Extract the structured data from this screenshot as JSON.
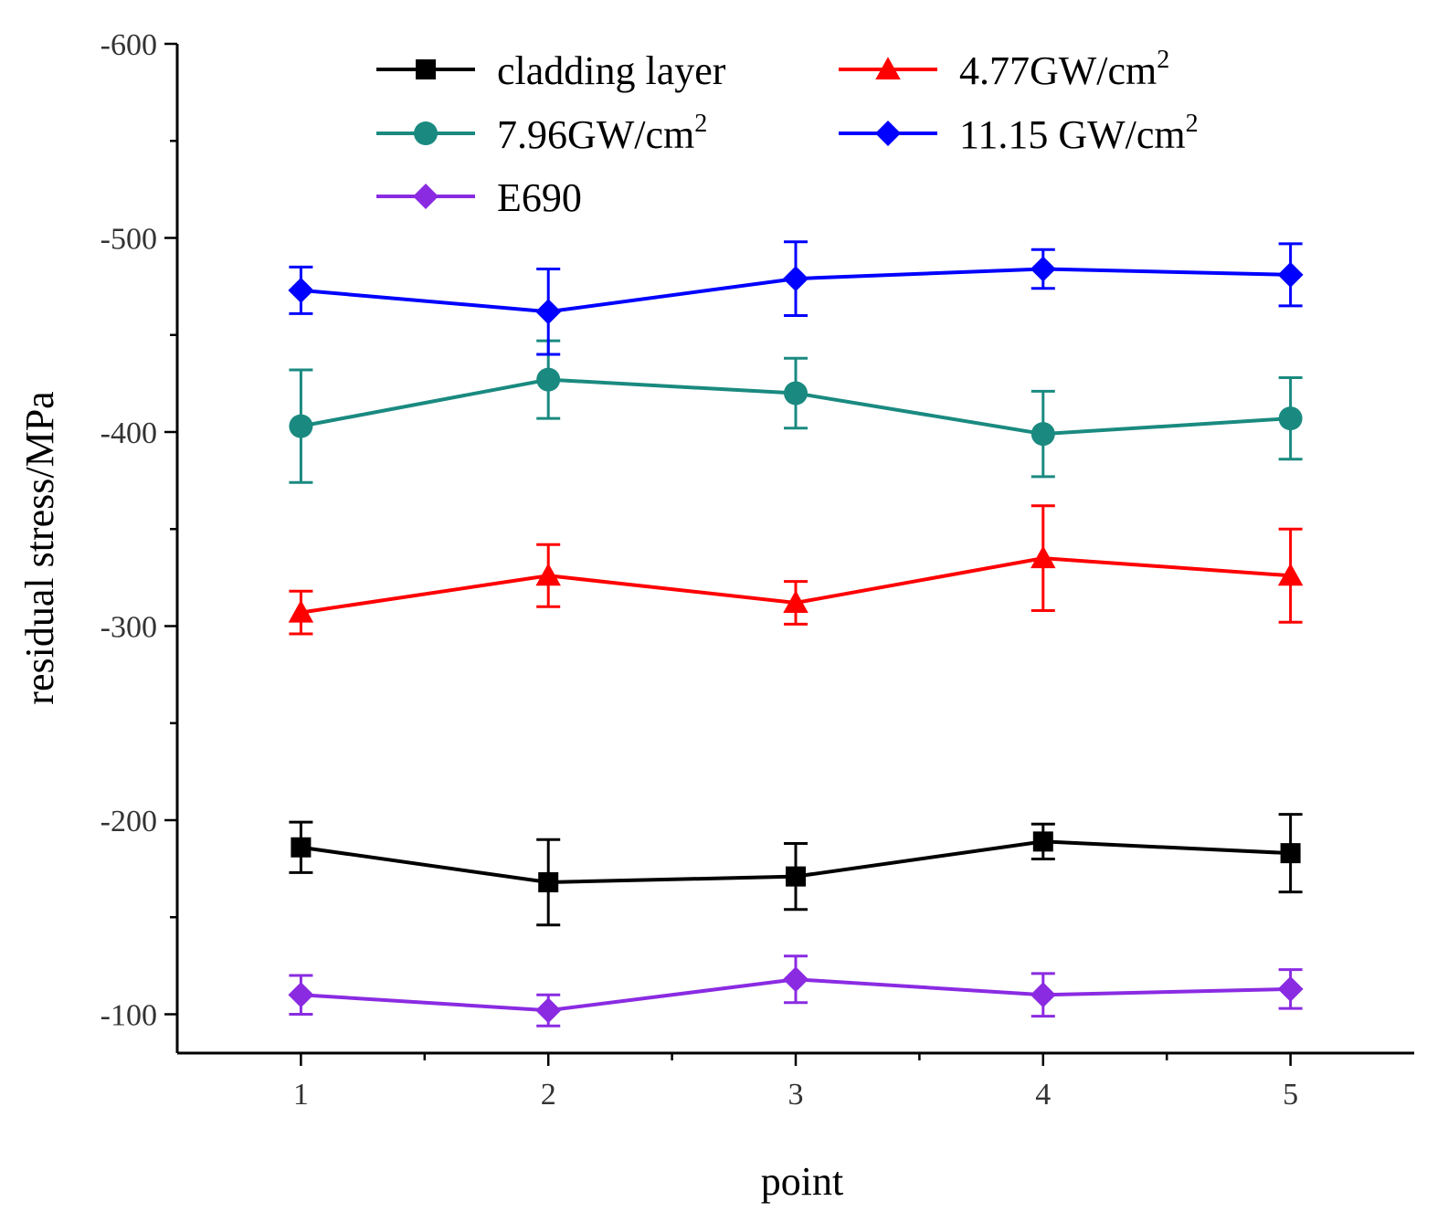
{
  "chart_data": {
    "type": "line",
    "xlabel": "point",
    "ylabel": "residual stress/MPa",
    "x": [
      1,
      2,
      3,
      4,
      5
    ],
    "x_tick_labels": [
      "1",
      "2",
      "3",
      "4",
      "5"
    ],
    "xlim": [
      0.5,
      5.5
    ],
    "ylim": [
      -80,
      -600
    ],
    "y_ticks": [
      -600,
      -500,
      -400,
      -300,
      -200,
      -100
    ],
    "y_tick_labels": [
      "-600",
      "-500",
      "-400",
      "-300",
      "-200",
      "-100"
    ],
    "y_axis_inverted": true,
    "legend_position": "top",
    "series": [
      {
        "name": "cladding layer",
        "legend_main": "cladding layer",
        "legend_sup": "",
        "color": "#000000",
        "marker": "square",
        "values": [
          -186,
          -168,
          -171,
          -189,
          -183
        ],
        "errors": [
          13,
          22,
          17,
          9,
          20
        ]
      },
      {
        "name": "4.77GW/cm2",
        "legend_main": "4.77GW/cm",
        "legend_sup": "2",
        "color": "#ff0000",
        "marker": "triangle",
        "values": [
          -307,
          -326,
          -312,
          -335,
          -326
        ],
        "errors": [
          11,
          16,
          11,
          27,
          24
        ]
      },
      {
        "name": "7.96GW/cm2",
        "legend_main": "7.96GW/cm",
        "legend_sup": "2",
        "color": "#1a8a80",
        "marker": "circle",
        "values": [
          -403,
          -427,
          -420,
          -399,
          -407
        ],
        "errors": [
          29,
          20,
          18,
          22,
          21
        ]
      },
      {
        "name": "11.15 GW/cm2",
        "legend_main": "11.15 GW/cm",
        "legend_sup": "2",
        "color": "#0000ff",
        "marker": "diamond",
        "values": [
          -473,
          -462,
          -479,
          -484,
          -481
        ],
        "errors": [
          12,
          22,
          19,
          10,
          16
        ]
      },
      {
        "name": "E690",
        "legend_main": "E690",
        "legend_sup": "",
        "color": "#8a2be2",
        "marker": "diamond",
        "values": [
          -110,
          -102,
          -118,
          -110,
          -113
        ],
        "errors": [
          10,
          8,
          12,
          11,
          10
        ]
      }
    ]
  }
}
